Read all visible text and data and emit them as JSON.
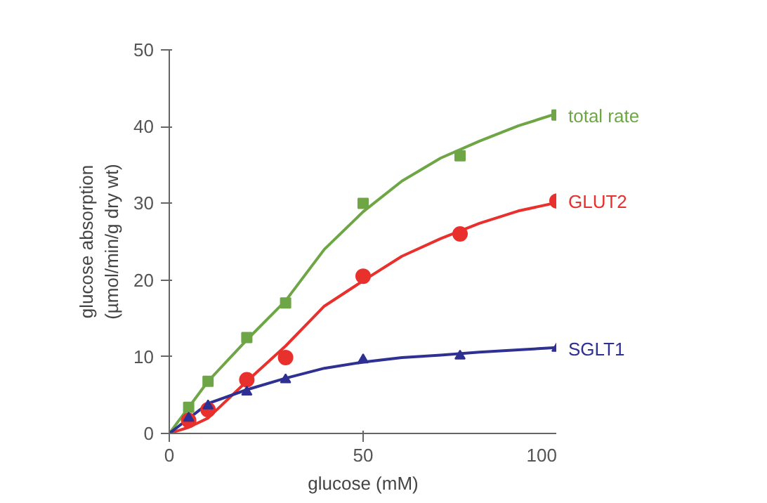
{
  "chart_data": {
    "type": "scatter",
    "xlabel": "glucose (mM)",
    "ylabel": "glucose absorption\n(µmol/min/g dry wt)",
    "xlim": [
      0,
      100
    ],
    "ylim": [
      0,
      50
    ],
    "xticks": [
      0,
      50,
      100
    ],
    "yticks": [
      0,
      10,
      20,
      30,
      40,
      50
    ],
    "grid": false,
    "legend": false,
    "series": [
      {
        "type": "line",
        "marker": "none",
        "color": "#6ea646",
        "x": [
          0,
          10,
          20,
          30,
          40,
          50,
          60,
          70,
          80,
          90,
          100
        ],
        "values": [
          0,
          6.8,
          12.2,
          17.3,
          24,
          28.9,
          32.9,
          35.9,
          38.1,
          40.1,
          41.7
        ]
      },
      {
        "type": "line",
        "marker": "none",
        "color": "#e8302c",
        "x": [
          0,
          5,
          10,
          20,
          30,
          40,
          50,
          60,
          70,
          80,
          90,
          100
        ],
        "values": [
          0,
          0.8,
          2,
          6.8,
          11.4,
          16.6,
          19.9,
          23.1,
          25.4,
          27.4,
          29,
          30.1
        ]
      },
      {
        "type": "line",
        "marker": "none",
        "color": "#2e3192",
        "x": [
          0,
          10,
          20,
          30,
          40,
          50,
          60,
          70,
          80,
          90,
          100
        ],
        "values": [
          0,
          3.9,
          5.7,
          7.2,
          8.5,
          9.3,
          9.9,
          10.2,
          10.6,
          10.9,
          11.2
        ]
      },
      {
        "name": "total rate",
        "marker": "square",
        "color": "#6ea646",
        "x": [
          5,
          10,
          20,
          30,
          50,
          75,
          100
        ],
        "values": [
          3.4,
          6.8,
          12.5,
          17,
          30,
          36.2,
          41.5
        ]
      },
      {
        "name": "GLUT2",
        "marker": "circle",
        "color": "#e8302c",
        "x": [
          5,
          10,
          20,
          30,
          50,
          75,
          100
        ],
        "values": [
          1.7,
          3.1,
          7,
          9.9,
          20.5,
          26,
          30.3
        ]
      },
      {
        "name": "SGLT1",
        "marker": "triangle",
        "color": "#2e3192",
        "x": [
          5,
          10,
          20,
          30,
          50,
          75,
          100
        ],
        "values": [
          2,
          3.6,
          5.4,
          7,
          9.6,
          10.1,
          11.1
        ]
      }
    ]
  }
}
